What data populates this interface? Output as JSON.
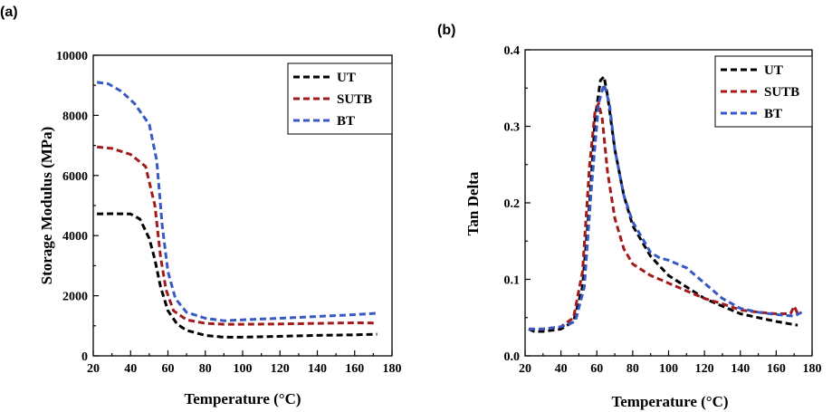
{
  "chart_data": [
    {
      "type": "line",
      "panel_label": "(a)",
      "title": "",
      "xlabel": "Temperature (°C)",
      "ylabel": "Storage Modulus (MPa)",
      "xlim": [
        20,
        180
      ],
      "ylim": [
        0,
        10000
      ],
      "xticks": [
        20,
        40,
        60,
        80,
        100,
        120,
        140,
        160,
        180
      ],
      "yticks": [
        0,
        2000,
        4000,
        6000,
        8000,
        10000
      ],
      "legend_position": "top-right",
      "grid": false,
      "series": [
        {
          "name": "UT",
          "color": "#000000",
          "points": [
            [
              22,
              4720
            ],
            [
              30,
              4730
            ],
            [
              40,
              4720
            ],
            [
              45,
              4550
            ],
            [
              50,
              3900
            ],
            [
              53,
              3200
            ],
            [
              56,
              2300
            ],
            [
              60,
              1500
            ],
            [
              65,
              1050
            ],
            [
              70,
              850
            ],
            [
              80,
              680
            ],
            [
              90,
              620
            ],
            [
              100,
              620
            ],
            [
              120,
              650
            ],
            [
              140,
              680
            ],
            [
              160,
              700
            ],
            [
              172,
              720
            ]
          ]
        },
        {
          "name": "SUTB",
          "color": "#a31a1a",
          "points": [
            [
              22,
              6950
            ],
            [
              30,
              6900
            ],
            [
              40,
              6700
            ],
            [
              48,
              6300
            ],
            [
              53,
              5000
            ],
            [
              56,
              3300
            ],
            [
              59,
              2200
            ],
            [
              63,
              1500
            ],
            [
              70,
              1200
            ],
            [
              80,
              1080
            ],
            [
              90,
              1050
            ],
            [
              100,
              1050
            ],
            [
              120,
              1060
            ],
            [
              140,
              1080
            ],
            [
              160,
              1100
            ],
            [
              172,
              1090
            ]
          ]
        },
        {
          "name": "BT",
          "color": "#3858c4",
          "points": [
            [
              22,
              9100
            ],
            [
              28,
              9050
            ],
            [
              35,
              8800
            ],
            [
              42,
              8400
            ],
            [
              50,
              7700
            ],
            [
              54,
              6500
            ],
            [
              57,
              4300
            ],
            [
              60,
              2800
            ],
            [
              64,
              1900
            ],
            [
              70,
              1450
            ],
            [
              80,
              1250
            ],
            [
              90,
              1170
            ],
            [
              100,
              1200
            ],
            [
              120,
              1250
            ],
            [
              140,
              1310
            ],
            [
              160,
              1370
            ],
            [
              172,
              1420
            ]
          ]
        }
      ]
    },
    {
      "type": "line",
      "panel_label": "(b)",
      "title": "",
      "xlabel": "Temperature (°C)",
      "ylabel": "Tan Delta",
      "xlim": [
        20,
        180
      ],
      "ylim": [
        0,
        0.4
      ],
      "xticks": [
        20,
        40,
        60,
        80,
        100,
        120,
        140,
        160,
        180
      ],
      "yticks": [
        0.0,
        0.1,
        0.2,
        0.3,
        0.4
      ],
      "ytick_labels": [
        "0.0",
        "0.1",
        "0.2",
        "0.3",
        "0.4"
      ],
      "legend_position": "top-right",
      "grid": false,
      "series": [
        {
          "name": "UT",
          "color": "#000000",
          "points": [
            [
              22,
              0.035
            ],
            [
              25,
              0.032
            ],
            [
              30,
              0.032
            ],
            [
              40,
              0.035
            ],
            [
              47,
              0.045
            ],
            [
              52,
              0.09
            ],
            [
              56,
              0.2
            ],
            [
              59,
              0.31
            ],
            [
              62,
              0.36
            ],
            [
              64,
              0.365
            ],
            [
              66,
              0.34
            ],
            [
              70,
              0.27
            ],
            [
              75,
              0.21
            ],
            [
              80,
              0.17
            ],
            [
              90,
              0.13
            ],
            [
              100,
              0.105
            ],
            [
              110,
              0.09
            ],
            [
              120,
              0.075
            ],
            [
              130,
              0.065
            ],
            [
              140,
              0.055
            ],
            [
              150,
              0.05
            ],
            [
              160,
              0.045
            ],
            [
              172,
              0.04
            ]
          ]
        },
        {
          "name": "SUTB",
          "color": "#a31a1a",
          "points": [
            [
              22,
              0.035
            ],
            [
              30,
              0.035
            ],
            [
              40,
              0.038
            ],
            [
              47,
              0.05
            ],
            [
              52,
              0.11
            ],
            [
              56,
              0.25
            ],
            [
              59,
              0.32
            ],
            [
              61,
              0.33
            ],
            [
              63,
              0.31
            ],
            [
              66,
              0.24
            ],
            [
              70,
              0.18
            ],
            [
              75,
              0.14
            ],
            [
              80,
              0.12
            ],
            [
              90,
              0.105
            ],
            [
              100,
              0.095
            ],
            [
              110,
              0.085
            ],
            [
              120,
              0.075
            ],
            [
              130,
              0.068
            ],
            [
              140,
              0.06
            ],
            [
              150,
              0.057
            ],
            [
              160,
              0.055
            ],
            [
              168,
              0.055
            ],
            [
              170,
              0.065
            ],
            [
              172,
              0.055
            ]
          ]
        },
        {
          "name": "BT",
          "color": "#3858c4",
          "points": [
            [
              22,
              0.035
            ],
            [
              30,
              0.035
            ],
            [
              40,
              0.038
            ],
            [
              48,
              0.045
            ],
            [
              53,
              0.09
            ],
            [
              57,
              0.22
            ],
            [
              61,
              0.33
            ],
            [
              64,
              0.355
            ],
            [
              67,
              0.33
            ],
            [
              70,
              0.27
            ],
            [
              75,
              0.21
            ],
            [
              80,
              0.175
            ],
            [
              90,
              0.135
            ],
            [
              95,
              0.128
            ],
            [
              100,
              0.125
            ],
            [
              110,
              0.115
            ],
            [
              120,
              0.095
            ],
            [
              130,
              0.075
            ],
            [
              140,
              0.062
            ],
            [
              150,
              0.057
            ],
            [
              160,
              0.054
            ],
            [
              170,
              0.052
            ],
            [
              175,
              0.058
            ]
          ]
        }
      ]
    }
  ]
}
